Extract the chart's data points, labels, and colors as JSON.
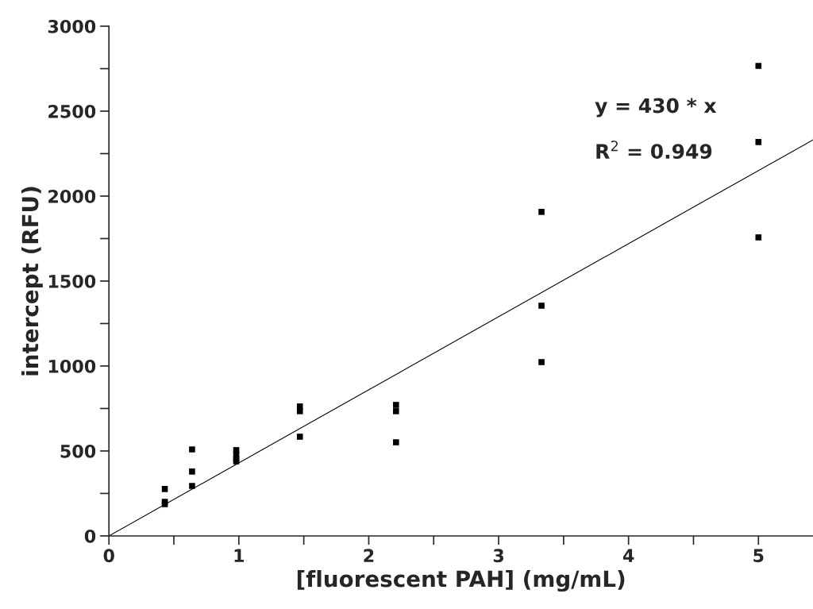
{
  "chart_data": {
    "type": "scatter",
    "xlabel": "[fluorescent PAH] (mg/mL)",
    "ylabel": "intercept (RFU)",
    "series": [
      {
        "type": "scatter",
        "color": "#000000",
        "marker": "square",
        "x": [
          0.43,
          0.43,
          0.43,
          0.64,
          0.64,
          0.64,
          0.98,
          0.98,
          0.98,
          0.98,
          1.47,
          1.47,
          1.47,
          2.21,
          2.21,
          2.21,
          3.33,
          3.33,
          3.33,
          5,
          5,
          5
        ],
        "values": [
          276,
          201,
          187,
          509,
          379,
          294,
          505,
          477,
          453,
          439,
          762,
          734,
          584,
          771,
          734,
          551,
          1907,
          1355,
          1023,
          2766,
          2318,
          1757
        ]
      },
      {
        "type": "line",
        "color": "#000000",
        "marker": "none",
        "line_style": "solid",
        "x": [
          0,
          5.42
        ],
        "values": [
          0,
          2331
        ]
      }
    ],
    "annotations": [
      "y = 430 * x",
      "R$^{2}$ = 0.949"
    ],
    "xlim": [
      0,
      5.42
    ],
    "ylim": [
      0,
      3000
    ],
    "xticks": [
      0,
      {
        "value": 0.5,
        "label": null
      },
      1,
      {
        "value": 1.5,
        "label": null
      },
      2,
      {
        "value": 2.5,
        "label": null
      },
      3,
      {
        "value": 3.5,
        "label": null
      },
      4,
      {
        "value": 4.5,
        "label": null
      },
      5
    ],
    "yticks": [
      0,
      {
        "value": 250,
        "label": null
      },
      500,
      {
        "value": 750,
        "label": null
      },
      1000,
      {
        "value": 1250,
        "label": null
      },
      1500,
      {
        "value": 1750,
        "label": null
      },
      2000,
      {
        "value": 2250,
        "label": null
      },
      2500,
      {
        "value": 2750,
        "label": null
      },
      3000
    ],
    "grid": false,
    "legend": false
  }
}
